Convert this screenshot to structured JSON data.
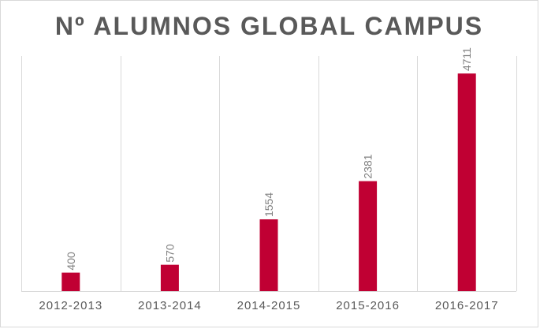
{
  "chart_data": {
    "type": "bar",
    "title": "Nº ALUMNOS GLOBAL CAMPUS",
    "categories": [
      "2012-2013",
      "2013-2014",
      "2014-2015",
      "2015-2016",
      "2016-2017"
    ],
    "values": [
      400,
      570,
      1554,
      2381,
      4711
    ],
    "data_labels": [
      "400",
      "570",
      "1554",
      "2381",
      "4711"
    ],
    "xlabel": "",
    "ylabel": "",
    "ylim": [
      0,
      5000
    ],
    "grid": "vertical category separators",
    "legend": "none",
    "bar_color": "#c00033",
    "text_color": "#595959",
    "data_label_color": "#808080",
    "grid_color": "#d9d9d9"
  }
}
